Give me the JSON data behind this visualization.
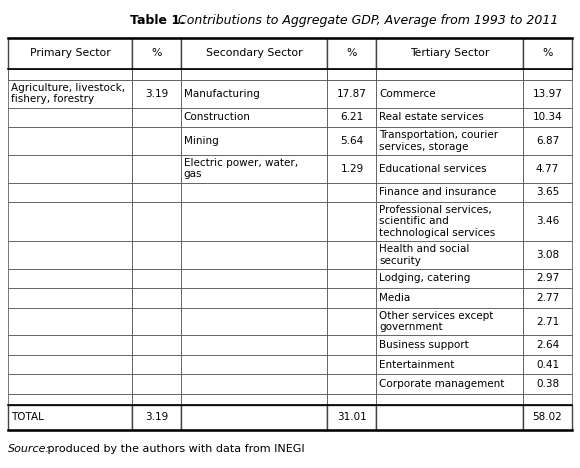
{
  "title_bold": "Table 1.",
  "title_italic": " Contributions to Aggregate GDP, Average from 1993 to 2011",
  "headers": [
    "Primary Sector",
    "%",
    "Secondary Sector",
    "%",
    "Tertiary Sector",
    "%"
  ],
  "primary_rows": [
    [
      "Agriculture, livestock,\nfishery, forestry",
      "3.19"
    ],
    [
      "",
      ""
    ],
    [
      "",
      ""
    ],
    [
      "",
      ""
    ],
    [
      "",
      ""
    ],
    [
      "",
      ""
    ],
    [
      "",
      ""
    ],
    [
      "",
      ""
    ],
    [
      "",
      ""
    ],
    [
      "",
      ""
    ],
    [
      "",
      ""
    ],
    [
      "",
      ""
    ],
    [
      "",
      ""
    ]
  ],
  "secondary_rows": [
    [
      "Manufacturing",
      "17.87"
    ],
    [
      "Construction",
      "6.21"
    ],
    [
      "Mining",
      "5.64"
    ],
    [
      "Electric power, water,\ngas",
      "1.29"
    ],
    [
      "",
      ""
    ],
    [
      "",
      ""
    ],
    [
      "",
      ""
    ],
    [
      "",
      ""
    ],
    [
      "",
      ""
    ],
    [
      "",
      ""
    ],
    [
      "",
      ""
    ],
    [
      "",
      ""
    ],
    [
      "",
      ""
    ]
  ],
  "tertiary_rows": [
    [
      "Commerce",
      "13.97"
    ],
    [
      "Real estate services",
      "10.34"
    ],
    [
      "Transportation, courier\nservices, storage",
      "6.87"
    ],
    [
      "Educational services",
      "4.77"
    ],
    [
      "Finance and insurance",
      "3.65"
    ],
    [
      "Professional services,\nscientific and\ntechnological services",
      "3.46"
    ],
    [
      "Health and social\nsecurity",
      "3.08"
    ],
    [
      "Lodging, catering",
      "2.97"
    ],
    [
      "Media",
      "2.77"
    ],
    [
      "Other services except\ngovernment",
      "2.71"
    ],
    [
      "Business support",
      "2.64"
    ],
    [
      "Entertainment",
      "0.41"
    ],
    [
      "Corporate management",
      "0.38"
    ]
  ],
  "totals": [
    "TOTAL",
    "3.19",
    "",
    "31.01",
    "",
    "58.02"
  ],
  "source_italic": "Source:",
  "source_normal": " produced by the authors with data from INEGI",
  "col_props": [
    0.19,
    0.075,
    0.225,
    0.075,
    0.225,
    0.075
  ],
  "font_size": 7.5,
  "header_font_size": 7.8,
  "title_font_size": 9.0
}
